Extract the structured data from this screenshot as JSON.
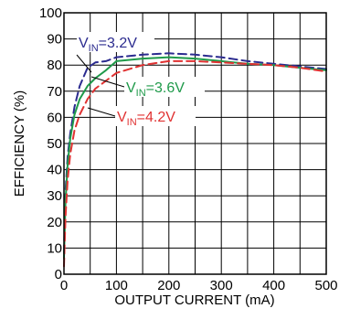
{
  "chart_data": {
    "type": "line",
    "title": "",
    "xlabel": "OUTPUT CURRENT (mA)",
    "ylabel": "EFFICIENCY (%)",
    "xlim": [
      0,
      500
    ],
    "ylim": [
      0,
      100
    ],
    "xticks": [
      "0",
      "100",
      "200",
      "300",
      "400",
      "500"
    ],
    "yticks": [
      "0",
      "10",
      "20",
      "30",
      "40",
      "50",
      "60",
      "70",
      "80",
      "90",
      "100"
    ],
    "grid": true,
    "legend": "none",
    "series": [
      {
        "name": "VIN=3.2V",
        "label_main": "V",
        "label_sub": "IN",
        "label_rest": "=3.2V",
        "color": "#2b2b8f",
        "dash": "dashed",
        "x": [
          0,
          3,
          7,
          12,
          20,
          30,
          45,
          60,
          80,
          100,
          150,
          200,
          250,
          300,
          350,
          400,
          450,
          500
        ],
        "y": [
          8,
          32,
          45,
          54,
          64,
          72,
          79,
          81,
          81.5,
          83,
          84,
          84.5,
          84,
          83,
          81.5,
          80.5,
          79.5,
          78.5
        ]
      },
      {
        "name": "VIN=3.6V",
        "label_main": "V",
        "label_sub": "IN",
        "label_rest": "=3.6V",
        "color": "#1f9a4a",
        "dash": "solid",
        "x": [
          0,
          3,
          7,
          12,
          20,
          30,
          45,
          60,
          80,
          100,
          150,
          200,
          250,
          300,
          350,
          400,
          450,
          500
        ],
        "y": [
          6,
          28,
          42,
          52,
          61,
          67,
          72,
          75,
          78,
          81.5,
          82.5,
          83,
          82.5,
          81.5,
          80.5,
          80,
          79,
          78
        ]
      },
      {
        "name": "VIN=4.2V",
        "label_main": "V",
        "label_sub": "IN",
        "label_rest": "=4.2V",
        "color": "#e03232",
        "dash": "dashed",
        "x": [
          0,
          3,
          7,
          12,
          20,
          30,
          45,
          60,
          80,
          100,
          150,
          200,
          250,
          300,
          350,
          400,
          450,
          500
        ],
        "y": [
          3,
          22,
          36,
          46,
          55,
          61,
          67,
          71,
          74,
          77,
          80,
          81.5,
          81.5,
          81,
          80.5,
          80,
          79,
          77.5
        ]
      }
    ]
  }
}
